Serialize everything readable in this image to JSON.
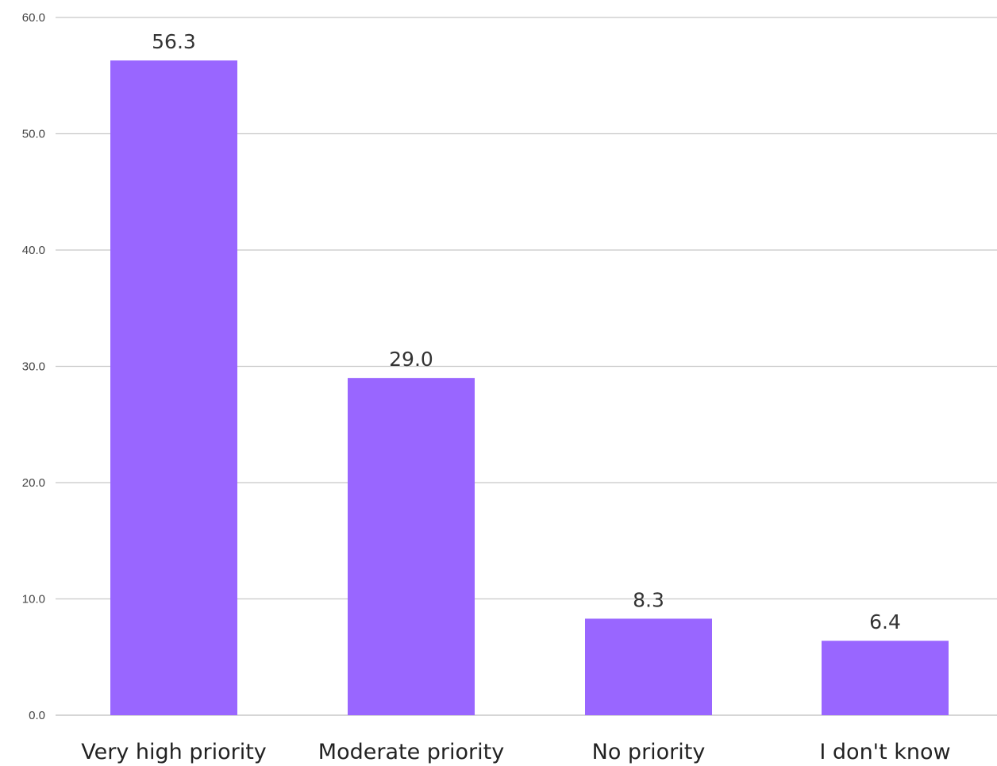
{
  "chart_data": {
    "type": "bar",
    "title": "",
    "xlabel": "",
    "ylabel": "",
    "categories": [
      "Very high priority",
      "Moderate priority",
      "No priority",
      "I don't know"
    ],
    "series": [
      {
        "values": [
          56.3,
          29.0,
          8.3,
          6.4
        ],
        "color": "#9966ff"
      }
    ],
    "data_labels": [
      "56.3",
      "29.0",
      "8.3",
      "6.4"
    ],
    "y_ticks": [
      "0.0",
      "10.0",
      "20.0",
      "30.0",
      "40.0",
      "50.0",
      "60.0"
    ],
    "ylim": [
      0,
      60
    ],
    "grid": true,
    "legend": "none"
  }
}
